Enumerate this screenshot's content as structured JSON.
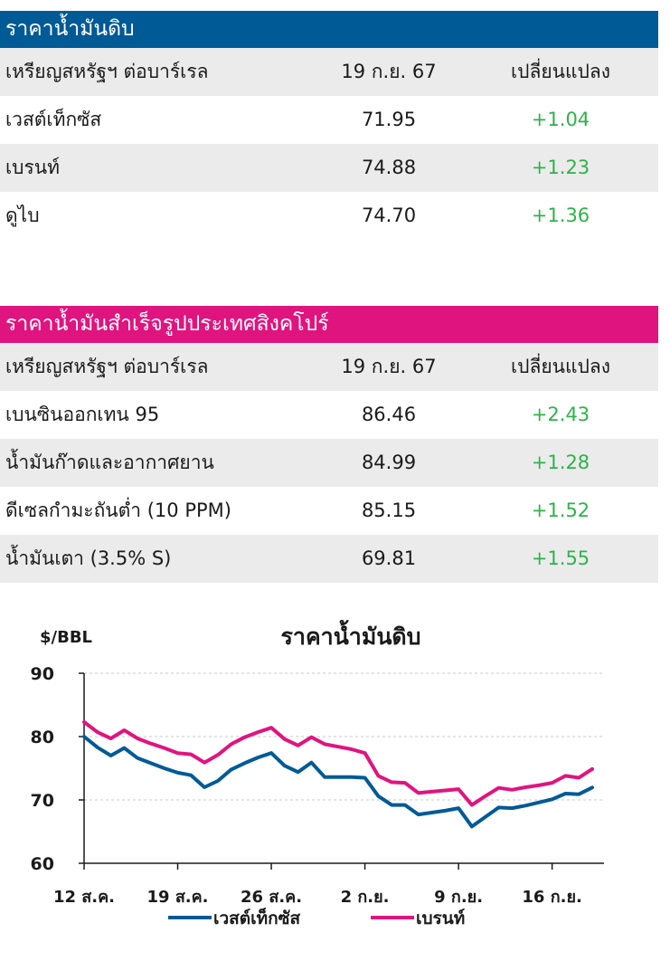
{
  "crude_table": {
    "title": "ราคาน้ำมันดิบ",
    "header": [
      "เหรียญสหรัฐฯ ต่อบาร์เรล",
      "19 ก.ย. 67",
      "เปลี่ยนแปลง"
    ],
    "rows": [
      [
        "เวสต์เท็กซัส",
        "71.95",
        "+1.04"
      ],
      [
        "เบรนท์",
        "74.88",
        "+1.23"
      ],
      [
        "ดูไบ",
        "74.70",
        "+1.36"
      ]
    ],
    "title_color": "#005a96",
    "change_color": "#2db34a"
  },
  "refined_table": {
    "title": "ราคาน้ำมันสำเร็จรูปประเทศสิงคโปร์",
    "header": [
      "เหรียญสหรัฐฯ ต่อบาร์เรล",
      "19 ก.ย. 67",
      "เปลี่ยนแปลง"
    ],
    "rows": [
      [
        "เบนซินออกเทน 95",
        "86.46",
        "+2.43"
      ],
      [
        "น้ำมันก๊าดและอากาศยาน",
        "84.99",
        "+1.28"
      ],
      [
        "ดีเซลกำมะถันต่ำ (10 PPM)",
        "85.15",
        "+1.52"
      ],
      [
        "น้ำมันเตา (3.5% S)",
        "69.81",
        "+1.55"
      ]
    ],
    "title_color": "#e0147f",
    "change_color": "#2db34a"
  },
  "chart_data": {
    "type": "line",
    "title": "ราคาน้ำมันดิบ",
    "ylabel": "$/BBL",
    "xlabel": "",
    "ylim": [
      60,
      90
    ],
    "yticks": [
      60,
      70,
      80,
      90
    ],
    "xtick_labels": [
      "12 ส.ค.",
      "19 ส.ค.",
      "26 ส.ค.",
      "2 ก.ย.",
      "9 ก.ย.",
      "16 ก.ย."
    ],
    "grid": "horizontal dashed",
    "legend_position": "bottom",
    "series": [
      {
        "name": "เวสต์เท็กซัส",
        "color": "#005a96",
        "values": [
          80.0,
          78.3,
          77.0,
          78.2,
          76.6,
          75.8,
          75.0,
          74.3,
          73.9,
          72.0,
          73.0,
          74.8,
          75.8,
          76.7,
          77.4,
          75.4,
          74.4,
          75.9,
          73.6,
          73.6,
          73.6,
          73.5,
          70.6,
          69.2,
          69.2,
          67.7,
          68.0,
          68.3,
          68.7,
          65.8,
          67.3,
          68.8,
          68.7,
          69.1,
          69.6,
          70.1,
          71.0,
          70.9,
          71.95
        ]
      },
      {
        "name": "เบรนท์",
        "color": "#e0147f",
        "values": [
          82.3,
          80.7,
          79.7,
          81.0,
          79.7,
          78.9,
          78.2,
          77.4,
          77.2,
          75.9,
          77.1,
          78.8,
          79.9,
          80.7,
          81.4,
          79.6,
          78.6,
          79.9,
          78.8,
          78.4,
          78.0,
          77.4,
          73.8,
          72.8,
          72.7,
          71.1,
          71.3,
          71.5,
          71.7,
          69.2,
          70.6,
          71.9,
          71.6,
          72.0,
          72.3,
          72.7,
          73.8,
          73.5,
          74.88
        ]
      }
    ]
  }
}
